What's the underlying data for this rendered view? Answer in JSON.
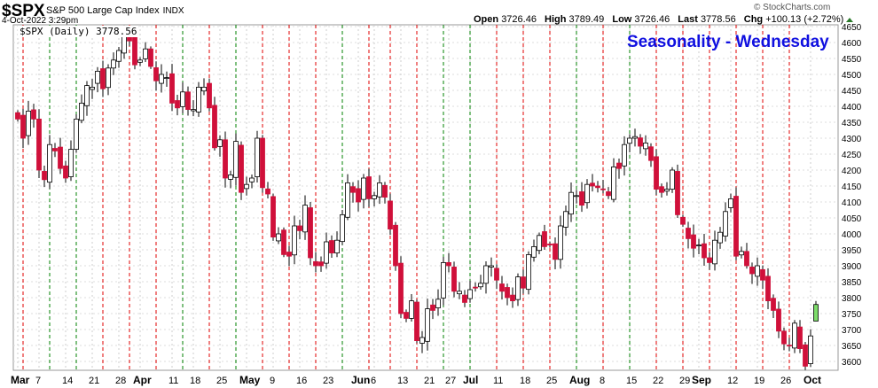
{
  "header": {
    "symbol": "$SPX",
    "name": "S&P 500 Large Cap Index",
    "exchange": "INDX",
    "datetime": "4-Oct-2022 3:29pm",
    "brand": "© StockCharts.com",
    "quote": {
      "open_label": "Open",
      "open": "3726.46",
      "high_label": "High",
      "high": "3789.49",
      "low_label": "Low",
      "low": "3726.46",
      "last_label": "Last",
      "last": "3778.56",
      "chg_label": "Chg",
      "chg": "+100.13 (+2.72%)"
    },
    "legend": "$SPX (Daily) 3778.56"
  },
  "chart_data": {
    "type": "candlestick",
    "title": "Seasonality - Wednesday",
    "ylim": [
      3575,
      4660
    ],
    "yticks": [
      3600,
      3650,
      3700,
      3750,
      3800,
      3850,
      3900,
      3950,
      4000,
      4050,
      4100,
      4150,
      4200,
      4250,
      4300,
      4350,
      4400,
      4450,
      4500,
      4550,
      4600,
      4650
    ],
    "xticks": [
      {
        "label": "Mar",
        "i": 0,
        "bold": true
      },
      {
        "label": "7",
        "i": 4
      },
      {
        "label": "14",
        "i": 9
      },
      {
        "label": "21",
        "i": 14
      },
      {
        "label": "28",
        "i": 19
      },
      {
        "label": "Apr",
        "i": 23,
        "bold": true
      },
      {
        "label": "11",
        "i": 29
      },
      {
        "label": "18",
        "i": 33
      },
      {
        "label": "25",
        "i": 38
      },
      {
        "label": "May",
        "i": 43,
        "bold": true
      },
      {
        "label": "9",
        "i": 48
      },
      {
        "label": "16",
        "i": 53
      },
      {
        "label": "23",
        "i": 58
      },
      {
        "label": "Jun",
        "i": 64,
        "bold": true
      },
      {
        "label": "6",
        "i": 67
      },
      {
        "label": "13",
        "i": 72
      },
      {
        "label": "21",
        "i": 77
      },
      {
        "label": "27",
        "i": 81
      },
      {
        "label": "Jul",
        "i": 85,
        "bold": true
      },
      {
        "label": "11",
        "i": 90
      },
      {
        "label": "18",
        "i": 95
      },
      {
        "label": "25",
        "i": 100
      },
      {
        "label": "Aug",
        "i": 105,
        "bold": true
      },
      {
        "label": "8",
        "i": 110
      },
      {
        "label": "15",
        "i": 115
      },
      {
        "label": "22",
        "i": 120
      },
      {
        "label": "29",
        "i": 125
      },
      {
        "label": "Sep",
        "i": 128,
        "bold": true
      },
      {
        "label": "12",
        "i": 134
      },
      {
        "label": "19",
        "i": 139
      },
      {
        "label": "26",
        "i": 144
      },
      {
        "label": "Oct",
        "i": 149,
        "bold": true
      }
    ],
    "first_open": 4380,
    "last_bar": {
      "open": 3726.46,
      "high": 3789.49,
      "low": 3726.46,
      "close": 3778.56
    },
    "closes": [
      4360,
      4300,
      4385,
      4360,
      4200,
      4170,
      4280,
      4260,
      4205,
      4175,
      4265,
      4360,
      4410,
      4465,
      4460,
      4510,
      4455,
      4520,
      4545,
      4575,
      4630,
      4605,
      4530,
      4545,
      4580,
      4525,
      4480,
      4500,
      4490,
      4410,
      4395,
      4445,
      4390,
      4390,
      4460,
      4460,
      4395,
      4270,
      4295,
      4175,
      4185,
      4290,
      4130,
      4155,
      4175,
      4300,
      4145,
      4125,
      3990,
      4000,
      3935,
      3930,
      4025,
      4010,
      4090,
      3925,
      3900,
      3900,
      3975,
      3940,
      3980,
      4060,
      4160,
      4130,
      4100,
      4175,
      4110,
      4120,
      4160,
      4115,
      4015,
      3900,
      3750,
      3735,
      3790,
      3665,
      3675,
      3765,
      3760,
      3795,
      3910,
      3900,
      3820,
      3820,
      3785,
      3825,
      3830,
      3845,
      3900,
      3900,
      3855,
      3820,
      3800,
      3790,
      3865,
      3830,
      3935,
      3960,
      3995,
      3960,
      3965,
      3920,
      4025,
      4070,
      4130,
      4120,
      4090,
      4155,
      4150,
      4145,
      4140,
      4120,
      4210,
      4205,
      4280,
      4300,
      4305,
      4275,
      4285,
      4230,
      4140,
      4130,
      4140,
      4200,
      4060,
      4030,
      3985,
      3955,
      3965,
      3925,
      3910,
      3980,
      4005,
      4070,
      4110,
      3930,
      3945,
      3900,
      3875,
      3900,
      3855,
      3790,
      3760,
      3695,
      3655,
      3650,
      3720,
      3640,
      3585,
      3680,
      3778.56
    ],
    "wednesday_index": [
      1,
      6,
      11,
      16,
      21,
      26,
      31,
      36,
      41,
      46,
      51,
      56,
      61,
      66,
      70,
      75,
      80,
      85,
      90,
      95,
      100,
      105,
      110,
      115,
      120,
      125,
      130,
      135,
      140,
      145
    ],
    "colors": {
      "down": "#d0103a",
      "up": "#ffffff",
      "today": "#7ddc6a",
      "wed_up": "#008000",
      "wed_down": "#e00000",
      "title": "#1010e0"
    }
  }
}
